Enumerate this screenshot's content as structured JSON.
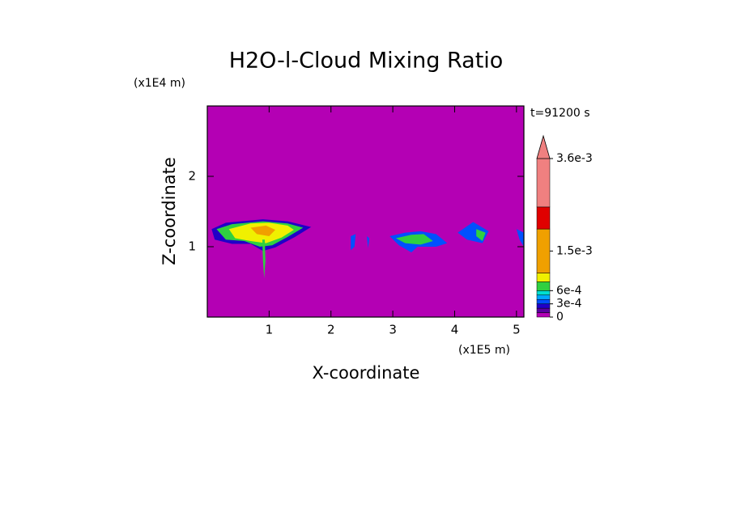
{
  "chart_data": {
    "type": "contour",
    "title": "H2O-l-Cloud Mixing Ratio",
    "x_label": "X-coordinate",
    "y_label": "Z-coordinate",
    "x_unit": "(x1E5 m)",
    "y_unit": "(x1E4 m)",
    "time_label": "t=91200 s",
    "xlim": [
      0,
      5.12
    ],
    "xticks": [
      1,
      2,
      3,
      4,
      5
    ],
    "ylim": [
      0,
      3
    ],
    "yticks": [
      1,
      2
    ],
    "levels": [
      0,
      0.0001,
      0.0002,
      0.0003,
      0.0004,
      0.0005,
      0.0006,
      0.0008,
      0.001,
      0.002,
      0.0025,
      0.0036
    ],
    "colors": [
      "#b400b4",
      "#5a00a0",
      "#2000c8",
      "#0050ff",
      "#00a8ff",
      "#00e0d0",
      "#30d040",
      "#f0f000",
      "#f0a000",
      "#e00000",
      "#f08080"
    ],
    "clim": [
      0,
      0.0036
    ],
    "cticks": [
      0,
      {
        "value": 0.0003,
        "label": "3e-4"
      },
      {
        "value": 0.0006,
        "label": "6e-4"
      },
      {
        "value": 0.0015,
        "label": "1.5e-3"
      },
      {
        "value": 0.0036,
        "label": "3.6e-3"
      }
    ],
    "regions": [
      {
        "value": 0.0002,
        "x": [
          0.07,
          0.3,
          0.9,
          1.3,
          1.68,
          1.42,
          1.1,
          0.9,
          0.7,
          0.4,
          0.12
        ],
        "z": [
          1.25,
          1.34,
          1.39,
          1.36,
          1.28,
          1.14,
          0.99,
          0.94,
          1.04,
          1.04,
          1.1
        ]
      },
      {
        "value": 0.0006,
        "x": [
          0.15,
          0.4,
          0.9,
          1.3,
          1.55,
          1.3,
          1.05,
          0.85,
          0.6,
          0.3
        ],
        "z": [
          1.25,
          1.32,
          1.36,
          1.33,
          1.27,
          1.14,
          1.02,
          1.0,
          1.08,
          1.1
        ]
      },
      {
        "value": 0.0009,
        "x": [
          0.35,
          0.7,
          1.0,
          1.3,
          1.4,
          1.2,
          0.95,
          0.7,
          0.45
        ],
        "z": [
          1.25,
          1.33,
          1.34,
          1.3,
          1.24,
          1.13,
          1.05,
          1.08,
          1.12
        ]
      },
      {
        "value": 0.0015,
        "x": [
          0.7,
          0.95,
          1.1,
          1.0,
          0.8
        ],
        "z": [
          1.27,
          1.3,
          1.24,
          1.15,
          1.18
        ]
      },
      {
        "value": 0.0006,
        "x": [
          0.89,
          0.93,
          0.94,
          0.92,
          0.9
        ],
        "z": [
          1.1,
          1.1,
          0.8,
          0.55,
          0.8
        ]
      },
      {
        "value": 0.0003,
        "x": [
          2.95,
          3.2,
          3.45,
          3.7,
          3.88,
          3.7,
          3.4,
          3.3,
          3.1
        ],
        "z": [
          1.15,
          1.2,
          1.22,
          1.18,
          1.05,
          1.0,
          1.0,
          0.92,
          1.02
        ]
      },
      {
        "value": 0.0006,
        "x": [
          3.05,
          3.3,
          3.5,
          3.65,
          3.45,
          3.2
        ],
        "z": [
          1.12,
          1.17,
          1.18,
          1.08,
          1.03,
          1.05
        ]
      },
      {
        "value": 0.0003,
        "x": [
          2.32,
          2.4,
          2.38,
          2.32
        ],
        "z": [
          1.15,
          1.18,
          1.0,
          0.95
        ]
      },
      {
        "value": 0.0003,
        "x": [
          2.58,
          2.62,
          2.6
        ],
        "z": [
          1.15,
          1.12,
          0.98
        ]
      },
      {
        "value": 0.0003,
        "x": [
          4.05,
          4.3,
          4.55,
          4.45,
          4.2
        ],
        "z": [
          1.2,
          1.35,
          1.22,
          1.05,
          1.1
        ]
      },
      {
        "value": 0.0006,
        "x": [
          4.35,
          4.5,
          4.45,
          4.35
        ],
        "z": [
          1.25,
          1.2,
          1.08,
          1.15
        ]
      },
      {
        "value": 0.0003,
        "x": [
          5.0,
          5.12,
          5.12,
          5.05
        ],
        "z": [
          1.25,
          1.2,
          1.0,
          1.1
        ]
      }
    ]
  }
}
